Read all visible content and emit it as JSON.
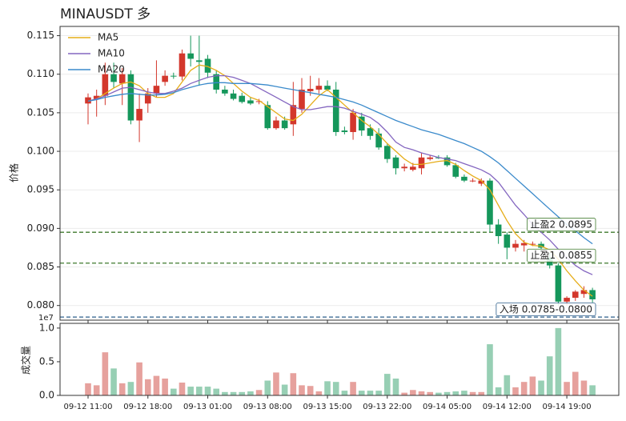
{
  "chart_data": [
    {
      "type": "candlestick",
      "title": "MINAUSDT 多",
      "y_label": "价格",
      "categories": [
        "09-12 11:00",
        null,
        null,
        null,
        null,
        null,
        null,
        "09-12 18:00",
        null,
        null,
        null,
        null,
        null,
        null,
        "09-13 01:00",
        null,
        null,
        null,
        null,
        null,
        null,
        "09-13 08:00",
        null,
        null,
        null,
        null,
        null,
        null,
        "09-13 15:00",
        null,
        null,
        null,
        null,
        null,
        null,
        "09-13 22:00",
        null,
        null,
        null,
        null,
        null,
        null,
        "09-14 05:00",
        null,
        null,
        null,
        null,
        null,
        null,
        "09-14 12:00",
        null,
        null,
        null,
        null,
        null,
        null,
        "09-14 19:00",
        null,
        null,
        null
      ],
      "open": [
        0.1062,
        0.1068,
        0.1072,
        0.11,
        0.1088,
        0.11,
        0.104,
        0.1062,
        0.1075,
        0.109,
        0.1098,
        0.1097,
        0.1127,
        0.1118,
        0.112,
        0.11,
        0.108,
        0.1075,
        0.1072,
        0.1066,
        0.1064,
        0.106,
        0.103,
        0.104,
        0.1035,
        0.1055,
        0.1078,
        0.108,
        0.1085,
        0.108,
        0.1027,
        0.1025,
        0.1045,
        0.103,
        0.1023,
        0.1007,
        0.0992,
        0.0978,
        0.0976,
        0.0978,
        0.099,
        0.0992,
        0.0992,
        0.0982,
        0.0967,
        0.0962,
        0.0958,
        0.0962,
        0.0905,
        0.0892,
        0.0875,
        0.0878,
        0.088,
        0.088,
        0.0862,
        0.0852,
        0.0805,
        0.081,
        0.0815,
        0.082
      ],
      "high": [
        0.1075,
        0.108,
        0.1115,
        0.1115,
        0.1108,
        0.1105,
        0.1075,
        0.1082,
        0.1118,
        0.1105,
        0.1102,
        0.1132,
        0.115,
        0.115,
        0.1125,
        0.1105,
        0.1085,
        0.108,
        0.1076,
        0.107,
        0.1068,
        0.1065,
        0.1045,
        0.1045,
        0.109,
        0.1095,
        0.1098,
        0.1095,
        0.1092,
        0.109,
        0.1032,
        0.1055,
        0.105,
        0.1035,
        0.103,
        0.101,
        0.0995,
        0.0984,
        0.0985,
        0.0998,
        0.0995,
        0.0995,
        0.0995,
        0.0985,
        0.097,
        0.0965,
        0.0965,
        0.0965,
        0.0912,
        0.0895,
        0.0885,
        0.0885,
        0.0883,
        0.0883,
        0.0868,
        0.0855,
        0.0812,
        0.082,
        0.0825,
        0.0823
      ],
      "low": [
        0.1035,
        0.1045,
        0.106,
        0.1082,
        0.106,
        0.1035,
        0.1012,
        0.105,
        0.107,
        0.1085,
        0.1094,
        0.1092,
        0.111,
        0.1085,
        0.1095,
        0.1075,
        0.1072,
        0.1066,
        0.1062,
        0.106,
        0.1061,
        0.1028,
        0.1028,
        0.1028,
        0.102,
        0.105,
        0.1072,
        0.1075,
        0.1078,
        0.102,
        0.1022,
        0.1015,
        0.102,
        0.1015,
        0.1002,
        0.0985,
        0.097,
        0.0974,
        0.0974,
        0.097,
        0.0988,
        0.099,
        0.098,
        0.0965,
        0.096,
        0.096,
        0.0955,
        0.0895,
        0.088,
        0.086,
        0.087,
        0.087,
        0.0877,
        0.087,
        0.0848,
        0.08,
        0.08,
        0.0806,
        0.081,
        0.0804
      ],
      "close": [
        0.107,
        0.1072,
        0.11,
        0.109,
        0.11,
        0.104,
        0.1055,
        0.1075,
        0.1085,
        0.1098,
        0.1097,
        0.1127,
        0.112,
        0.1116,
        0.1102,
        0.108,
        0.1075,
        0.1068,
        0.1064,
        0.1062,
        0.1065,
        0.103,
        0.104,
        0.103,
        0.106,
        0.108,
        0.1081,
        0.1085,
        0.108,
        0.1025,
        0.1025,
        0.105,
        0.1027,
        0.102,
        0.1005,
        0.099,
        0.0978,
        0.098,
        0.098,
        0.0992,
        0.0992,
        0.0991,
        0.0982,
        0.0967,
        0.0962,
        0.0962,
        0.0962,
        0.0905,
        0.089,
        0.0875,
        0.088,
        0.0881,
        0.088,
        0.0875,
        0.0852,
        0.0805,
        0.081,
        0.0818,
        0.082,
        0.0808
      ],
      "up_color": "#d3372c",
      "down_color": "#15975b",
      "ylim": [
        0.0781,
        0.1162
      ],
      "yticks": [
        {
          "value": 0.08,
          "label": "0.080"
        },
        {
          "value": 0.085,
          "label": "0.085"
        },
        {
          "value": 0.09,
          "label": "0.090"
        },
        {
          "value": 0.095,
          "label": "0.095"
        },
        {
          "value": 0.1,
          "label": "0.100"
        },
        {
          "value": 0.105,
          "label": "0.105"
        },
        {
          "value": 0.11,
          "label": "0.110"
        },
        {
          "value": 0.115,
          "label": "0.115"
        }
      ],
      "grid": true,
      "legend": "upper left",
      "series": [
        {
          "name": "MA5",
          "color": "#e6ad19",
          "values": [
            0.1065,
            0.1068,
            0.1075,
            0.1082,
            0.1088,
            0.109,
            0.1085,
            0.1075,
            0.107,
            0.107,
            0.1075,
            0.109,
            0.1105,
            0.1112,
            0.111,
            0.1105,
            0.1098,
            0.1088,
            0.1078,
            0.107,
            0.1066,
            0.1058,
            0.105,
            0.1042,
            0.104,
            0.1048,
            0.106,
            0.1072,
            0.108,
            0.107,
            0.106,
            0.105,
            0.104,
            0.1032,
            0.1022,
            0.101,
            0.1,
            0.099,
            0.0983,
            0.0983,
            0.0985,
            0.0987,
            0.0988,
            0.0983,
            0.0975,
            0.0968,
            0.0962,
            0.095,
            0.093,
            0.091,
            0.0893,
            0.0882,
            0.0878,
            0.0877,
            0.0872,
            0.086,
            0.0845,
            0.0832,
            0.082,
            0.0812
          ]
        },
        {
          "name": "MA10",
          "color": "#8466c0",
          "values": [
            0.1065,
            0.1068,
            0.1072,
            0.1077,
            0.1082,
            0.1083,
            0.108,
            0.1077,
            0.1075,
            0.1075,
            0.1078,
            0.1082,
            0.1088,
            0.1092,
            0.1096,
            0.1098,
            0.1098,
            0.1096,
            0.1092,
            0.1088,
            0.1082,
            0.1076,
            0.107,
            0.1064,
            0.1058,
            0.1054,
            0.1054,
            0.1056,
            0.1058,
            0.1058,
            0.1056,
            0.1052,
            0.1048,
            0.1044,
            0.1036,
            0.1025,
            0.1012,
            0.1005,
            0.1002,
            0.0998,
            0.0995,
            0.0992,
            0.099,
            0.0988,
            0.0984,
            0.098,
            0.0976,
            0.097,
            0.096,
            0.0945,
            0.093,
            0.0918,
            0.0905,
            0.0895,
            0.0885,
            0.0873,
            0.0862,
            0.0852,
            0.0845,
            0.084
          ]
        },
        {
          "name": "MA20",
          "color": "#3a8acb",
          "values": [
            0.1065,
            0.1067,
            0.107,
            0.1072,
            0.1074,
            0.1075,
            0.1074,
            0.1073,
            0.1073,
            0.1074,
            0.1076,
            0.108,
            0.1083,
            0.1086,
            0.1088,
            0.1089,
            0.1089,
            0.1088,
            0.1088,
            0.1088,
            0.1087,
            0.1086,
            0.1084,
            0.1082,
            0.108,
            0.1078,
            0.1076,
            0.1074,
            0.1072,
            0.107,
            0.1067,
            0.1064,
            0.106,
            0.1055,
            0.105,
            0.1045,
            0.104,
            0.1036,
            0.1032,
            0.1028,
            0.1025,
            0.1022,
            0.1018,
            0.1014,
            0.101,
            0.1005,
            0.1,
            0.0993,
            0.0985,
            0.0975,
            0.0965,
            0.0955,
            0.0945,
            0.0935,
            0.0925,
            0.0915,
            0.0905,
            0.0897,
            0.0888,
            0.088
          ]
        }
      ],
      "hlines": [
        {
          "value": 0.0895,
          "label": "止盈2 0.0895",
          "color": "#3f7a2c"
        },
        {
          "value": 0.0855,
          "label": "止盈1 0.0855",
          "color": "#3f7a2c"
        },
        {
          "value": 0.0785,
          "label": "入场 0.0785-0.0800",
          "color": "#2d5f8c"
        }
      ]
    },
    {
      "type": "bar",
      "y_label": "成交量",
      "offset_label": "1e7",
      "values": [
        0.18,
        0.15,
        0.64,
        0.4,
        0.18,
        0.2,
        0.49,
        0.24,
        0.29,
        0.25,
        0.1,
        0.19,
        0.13,
        0.13,
        0.13,
        0.1,
        0.05,
        0.05,
        0.05,
        0.06,
        0.08,
        0.22,
        0.34,
        0.16,
        0.33,
        0.15,
        0.14,
        0.06,
        0.21,
        0.2,
        0.07,
        0.2,
        0.07,
        0.07,
        0.07,
        0.32,
        0.25,
        0.04,
        0.08,
        0.06,
        0.05,
        0.04,
        0.05,
        0.06,
        0.07,
        0.05,
        0.05,
        0.76,
        0.12,
        0.3,
        0.12,
        0.2,
        0.28,
        0.22,
        0.58,
        1.0,
        0.2,
        0.35,
        0.22,
        0.15
      ],
      "up_color": "#e6a19d",
      "down_color": "#97cfb4",
      "ylim": [
        0,
        1.07
      ],
      "yticks": [
        {
          "value": 0,
          "label": "0.0"
        },
        {
          "value": 0.5,
          "label": "0.5"
        },
        {
          "value": 1.0,
          "label": "1.0"
        }
      ]
    }
  ]
}
